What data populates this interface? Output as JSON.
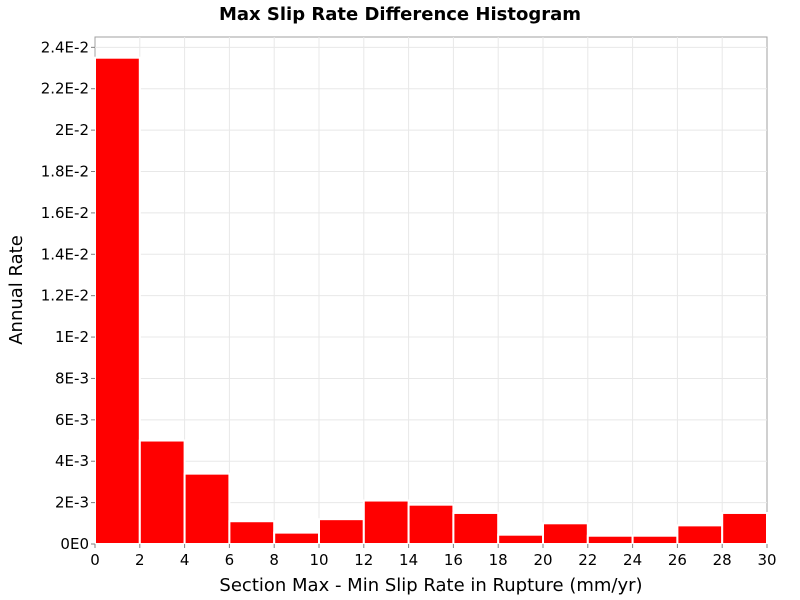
{
  "chart_data": {
    "type": "bar",
    "title": "Max Slip Rate Difference Histogram",
    "xlabel": "Section Max - Min Slip Rate in Rupture (mm/yr)",
    "ylabel": "Annual Rate",
    "xlim": [
      0,
      30
    ],
    "ylim": [
      0,
      0.0245
    ],
    "grid": true,
    "bar_color": "#ff0000",
    "bins": [
      {
        "x0": 0,
        "x1": 2,
        "value": 0.0235
      },
      {
        "x0": 2,
        "x1": 4,
        "value": 0.005
      },
      {
        "x0": 4,
        "x1": 6,
        "value": 0.0034
      },
      {
        "x0": 6,
        "x1": 8,
        "value": 0.0011
      },
      {
        "x0": 8,
        "x1": 10,
        "value": 0.00055
      },
      {
        "x0": 10,
        "x1": 12,
        "value": 0.0012
      },
      {
        "x0": 12,
        "x1": 14,
        "value": 0.0021
      },
      {
        "x0": 14,
        "x1": 16,
        "value": 0.0019
      },
      {
        "x0": 16,
        "x1": 18,
        "value": 0.0015
      },
      {
        "x0": 18,
        "x1": 20,
        "value": 0.00045
      },
      {
        "x0": 20,
        "x1": 22,
        "value": 0.001
      },
      {
        "x0": 22,
        "x1": 24,
        "value": 0.0004
      },
      {
        "x0": 24,
        "x1": 26,
        "value": 0.0004
      },
      {
        "x0": 26,
        "x1": 28,
        "value": 0.0009
      },
      {
        "x0": 28,
        "x1": 30,
        "value": 0.0015
      }
    ],
    "x_ticks": [
      {
        "value": 0,
        "label": "0"
      },
      {
        "value": 2,
        "label": "2"
      },
      {
        "value": 4,
        "label": "4"
      },
      {
        "value": 6,
        "label": "6"
      },
      {
        "value": 8,
        "label": "8"
      },
      {
        "value": 10,
        "label": "10"
      },
      {
        "value": 12,
        "label": "12"
      },
      {
        "value": 14,
        "label": "14"
      },
      {
        "value": 16,
        "label": "16"
      },
      {
        "value": 18,
        "label": "18"
      },
      {
        "value": 20,
        "label": "20"
      },
      {
        "value": 22,
        "label": "22"
      },
      {
        "value": 24,
        "label": "24"
      },
      {
        "value": 26,
        "label": "26"
      },
      {
        "value": 28,
        "label": "28"
      },
      {
        "value": 30,
        "label": "30"
      }
    ],
    "y_ticks": [
      {
        "value": 0,
        "label": "0E0"
      },
      {
        "value": 0.002,
        "label": "2E-3"
      },
      {
        "value": 0.004,
        "label": "4E-3"
      },
      {
        "value": 0.006,
        "label": "6E-3"
      },
      {
        "value": 0.008,
        "label": "8E-3"
      },
      {
        "value": 0.01,
        "label": "1E-2"
      },
      {
        "value": 0.012,
        "label": "1.2E-2"
      },
      {
        "value": 0.014,
        "label": "1.4E-2"
      },
      {
        "value": 0.016,
        "label": "1.6E-2"
      },
      {
        "value": 0.018,
        "label": "1.8E-2"
      },
      {
        "value": 0.02,
        "label": "2E-2"
      },
      {
        "value": 0.022,
        "label": "2.2E-2"
      },
      {
        "value": 0.024,
        "label": "2.4E-2"
      }
    ]
  }
}
